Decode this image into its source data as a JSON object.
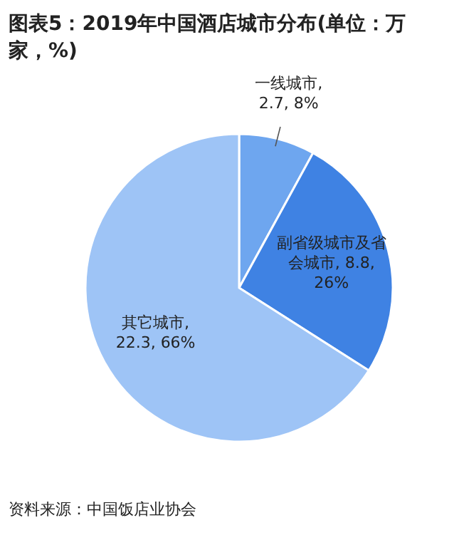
{
  "chart_data": {
    "type": "pie",
    "title": "图表5：2019年中国酒店城市分布(单位：万家，%)",
    "categories": [
      "一线城市",
      "副省级城市及省会城市",
      "其它城市"
    ],
    "values": [
      2.7,
      8.8,
      22.3
    ],
    "value_labels": [
      ", 2.7, 8%",
      ", 8.8, 26%",
      ", 22.3, 66%"
    ],
    "colors": [
      "#6ea6ef",
      "#3f82e3",
      "#9ec4f6"
    ],
    "annotations": [
      "资料来源：中国饭店业协会"
    ]
  }
}
